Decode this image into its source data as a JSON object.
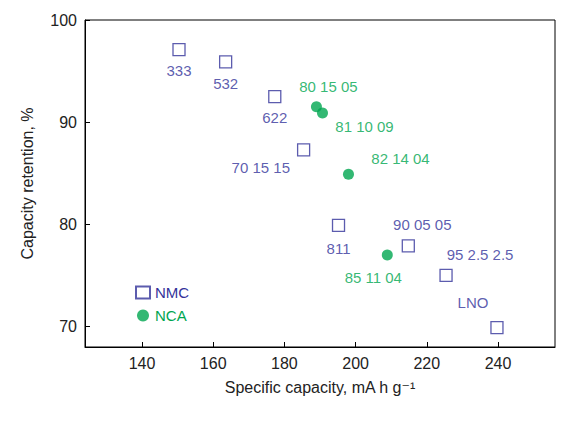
{
  "chart_data": {
    "type": "scatter",
    "x_label": "Specific capacity, mA h g⁻¹",
    "y_label": "Capacity retention, %",
    "xlim": [
      124,
      256
    ],
    "ylim": [
      68,
      100
    ],
    "xticks": [
      140,
      160,
      180,
      200,
      220,
      240
    ],
    "yticks": [
      70,
      80,
      90,
      100
    ],
    "grid": false,
    "legend": "lower left",
    "series": [
      {
        "name": "NMC",
        "color": "#33339a",
        "marker": "open square",
        "x": [
          150.4,
          163.5,
          177.3,
          185.4,
          195.2,
          214.8,
          225.4,
          239.7
        ],
        "y": [
          97.1,
          95.9,
          92.5,
          87.3,
          79.9,
          77.9,
          75.0,
          69.9
        ],
        "labels": [
          "333",
          "532",
          "622",
          "70 15 15",
          "811",
          "90 05 05",
          "95 2.5 2.5",
          "LNO"
        ]
      },
      {
        "name": "NCA",
        "color": "#00a650",
        "marker": "filled circle",
        "x": [
          189.0,
          190.7,
          198.0,
          208.9
        ],
        "y": [
          91.5,
          90.9,
          84.9,
          77.0
        ],
        "labels": [
          "80 15 05",
          "81 10 09",
          "82 14 04",
          "85 11 04"
        ]
      }
    ]
  }
}
